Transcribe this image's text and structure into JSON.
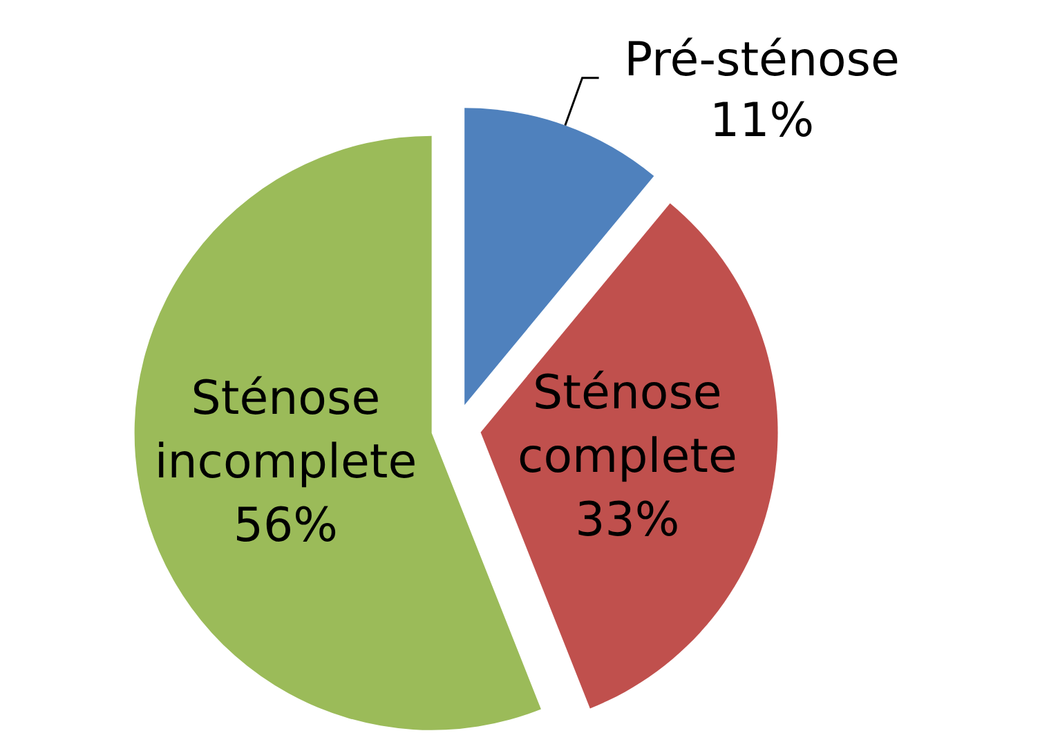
{
  "chart_data": {
    "type": "pie",
    "categories": [
      "Pré-sténose",
      "Sténose complete",
      "Sténose incomplete"
    ],
    "values": [
      11,
      33,
      56
    ],
    "colors": [
      "#4f81bd",
      "#c0504d",
      "#9bbb59"
    ],
    "data_labels": true,
    "value_labels": [
      "11%",
      "33%",
      "56%"
    ]
  }
}
